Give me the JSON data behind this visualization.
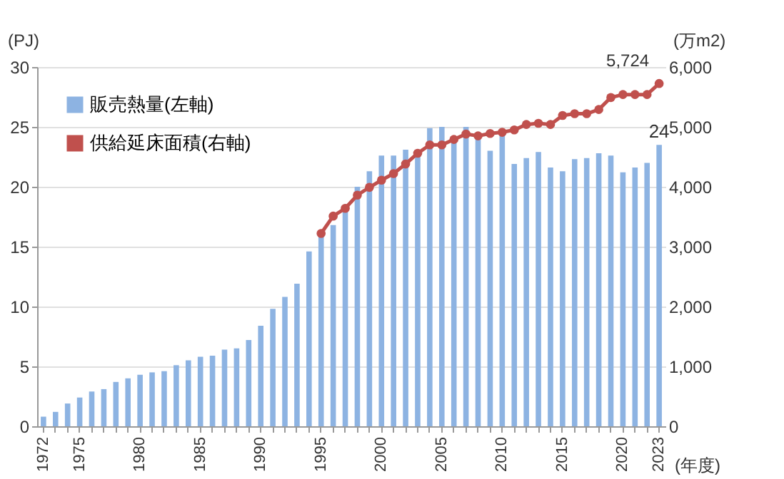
{
  "chart_data": {
    "type": "bar",
    "categories": [
      "1972",
      null,
      null,
      "1975",
      null,
      null,
      null,
      null,
      "1980",
      null,
      null,
      null,
      null,
      "1985",
      null,
      null,
      null,
      null,
      "1990",
      null,
      null,
      null,
      null,
      "1995",
      null,
      null,
      null,
      null,
      "2000",
      null,
      null,
      null,
      null,
      "2005",
      null,
      null,
      null,
      null,
      "2010",
      null,
      null,
      null,
      null,
      "2015",
      null,
      null,
      null,
      null,
      "2020",
      null,
      null,
      "2023"
    ],
    "series": [
      {
        "name": "販売熱量(左軸)",
        "color": "#8db3e2",
        "values": [
          0.8,
          1.2,
          1.9,
          2.4,
          2.9,
          3.1,
          3.7,
          4.0,
          4.3,
          4.5,
          4.6,
          5.1,
          5.5,
          5.8,
          5.9,
          6.4,
          6.5,
          7.2,
          8.4,
          9.8,
          10.8,
          11.9,
          14.6,
          15.9,
          16.8,
          18.2,
          20.0,
          21.3,
          22.6,
          22.6,
          23.1,
          22.9,
          24.9,
          25.0,
          23.8,
          25.0,
          24.1,
          23.0,
          24.5,
          21.9,
          22.4,
          22.9,
          21.6,
          21.3,
          22.3,
          22.4,
          22.8,
          22.6,
          21.2,
          21.6,
          22.0,
          23.5
        ],
        "value_labels": [
          null,
          null,
          null,
          null,
          null,
          null,
          null,
          null,
          null,
          null,
          null,
          null,
          null,
          null,
          null,
          null,
          null,
          null,
          null,
          null,
          null,
          null,
          null,
          null,
          null,
          null,
          null,
          null,
          null,
          null,
          null,
          null,
          null,
          null,
          null,
          null,
          null,
          null,
          null,
          null,
          null,
          null,
          null,
          null,
          null,
          null,
          null,
          null,
          null,
          null,
          null,
          "24"
        ]
      },
      {
        "name": "供給延床面積(右軸)",
        "type": "line",
        "axis": "y2",
        "color": "#c0504d",
        "marker": "circle",
        "values": [
          null,
          null,
          null,
          null,
          null,
          null,
          null,
          null,
          null,
          null,
          null,
          null,
          null,
          null,
          null,
          null,
          null,
          null,
          null,
          null,
          null,
          null,
          null,
          3220,
          3510,
          3640,
          3860,
          3990,
          4110,
          4220,
          4380,
          4560,
          4700,
          4700,
          4790,
          4880,
          4850,
          4890,
          4910,
          4950,
          5040,
          5060,
          5040,
          5190,
          5220,
          5220,
          5290,
          5490,
          5540,
          5540,
          5540,
          5724
        ],
        "value_labels": [
          null,
          null,
          null,
          null,
          null,
          null,
          null,
          null,
          null,
          null,
          null,
          null,
          null,
          null,
          null,
          null,
          null,
          null,
          null,
          null,
          null,
          null,
          null,
          null,
          null,
          null,
          null,
          null,
          null,
          null,
          null,
          null,
          null,
          null,
          null,
          null,
          null,
          null,
          null,
          null,
          null,
          null,
          null,
          null,
          null,
          null,
          null,
          null,
          null,
          null,
          null,
          "5,724"
        ]
      }
    ],
    "xlabel": "(年度)",
    "ylabel": "(PJ)",
    "y2label": "(万m2)",
    "ylim": [
      0,
      30
    ],
    "yticks": [
      0,
      5,
      10,
      15,
      20,
      25,
      30
    ],
    "y2lim": [
      0,
      6000
    ],
    "y2ticks": [
      0,
      {
        "value": 1000,
        "label": "1,000"
      },
      {
        "value": 2000,
        "label": "2,000"
      },
      {
        "value": 3000,
        "label": "3,000"
      },
      {
        "value": 4000,
        "label": "4,000"
      },
      {
        "value": 5000,
        "label": "5,000"
      },
      {
        "value": 6000,
        "label": "6,000"
      }
    ],
    "grid": "y",
    "legend": "top left"
  }
}
